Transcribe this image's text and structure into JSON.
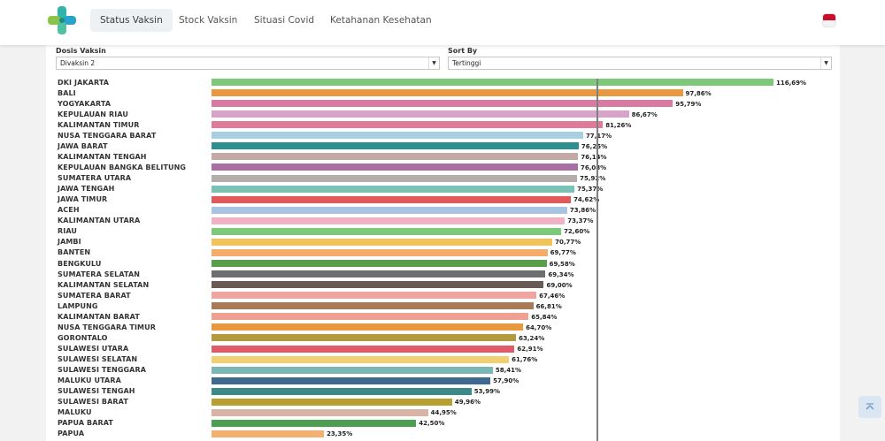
{
  "nav": {
    "items": [
      {
        "label": "Status Vaksin",
        "active": true
      },
      {
        "label": "Stock Vaksin",
        "active": false
      },
      {
        "label": "Situasi Covid",
        "active": false
      },
      {
        "label": "Ketahanan Kesehatan",
        "active": false
      }
    ]
  },
  "filters": {
    "dose_label": "Dosis Vaksin",
    "dose_value": "Divaksin 2",
    "sort_label": "Sort By",
    "sort_value": "Tertinggi"
  },
  "chart_data": {
    "type": "bar",
    "orientation": "horizontal",
    "xlim": [
      0,
      120
    ],
    "reference_line": 80,
    "categories": [
      "DKI JAKARTA",
      "BALI",
      "YOGYAKARTA",
      "KEPULAUAN RIAU",
      "KALIMANTAN TIMUR",
      "NUSA TENGGARA BARAT",
      "JAWA BARAT",
      "KALIMANTAN TENGAH",
      "KEPULAUAN BANGKA BELITUNG",
      "SUMATERA UTARA",
      "JAWA TENGAH",
      "JAWA TIMUR",
      "ACEH",
      "KALIMANTAN UTARA",
      "RIAU",
      "JAMBI",
      "BANTEN",
      "BENGKULU",
      "SUMATERA SELATAN",
      "KALIMANTAN SELATAN",
      "SUMATERA BARAT",
      "LAMPUNG",
      "KALIMANTAN BARAT",
      "NUSA TENGGARA TIMUR",
      "GORONTALO",
      "SULAWESI UTARA",
      "SULAWESI SELATAN",
      "SULAWESI TENGGARA",
      "MALUKU UTARA",
      "SULAWESI TENGAH",
      "SULAWESI BARAT",
      "MALUKU",
      "PAPUA BARAT",
      "PAPUA"
    ],
    "values": [
      116.69,
      97.86,
      95.79,
      86.67,
      81.26,
      77.17,
      76.25,
      76.14,
      76.08,
      75.92,
      75.37,
      74.62,
      73.86,
      73.37,
      72.6,
      70.77,
      69.77,
      69.58,
      69.34,
      69.0,
      67.46,
      66.81,
      65.84,
      64.7,
      63.24,
      62.91,
      61.76,
      58.41,
      57.9,
      53.99,
      49.96,
      44.95,
      42.5,
      23.35
    ],
    "labels": [
      "116,69%",
      "97,86%",
      "95,79%",
      "86,67%",
      "81,26%",
      "77,17%",
      "76,25%",
      "76,14%",
      "76,08%",
      "75,92%",
      "75,37%",
      "74,62%",
      "73,86%",
      "73,37%",
      "72,60%",
      "70,77%",
      "69,77%",
      "69,58%",
      "69,34%",
      "69,00%",
      "67,46%",
      "66,81%",
      "65,84%",
      "64,70%",
      "63,24%",
      "62,91%",
      "61,76%",
      "58,41%",
      "57,90%",
      "53,99%",
      "49,96%",
      "44,95%",
      "42,50%",
      "23,35%"
    ],
    "colors": [
      "#7dc97a",
      "#e8983e",
      "#d97aa3",
      "#d9a3c9",
      "#e07a9a",
      "#a9cfe3",
      "#2e8f8f",
      "#c4a9a6",
      "#a96ea3",
      "#b3aeac",
      "#7cc2b4",
      "#e05a5a",
      "#a9c4e3",
      "#f0b3c4",
      "#7dc97a",
      "#f0c45a",
      "#f5ab6a",
      "#5a9e4a",
      "#6e6e6e",
      "#6a5a56",
      "#f0a59e",
      "#a87a56",
      "#f0a090",
      "#e8983e",
      "#b39a3e",
      "#e05a6a",
      "#f0d070",
      "#7ab8b8",
      "#3e6a8f",
      "#3a8a8a",
      "#b8a030",
      "#d9b3a3",
      "#4aa050",
      "#f5b070"
    ]
  }
}
